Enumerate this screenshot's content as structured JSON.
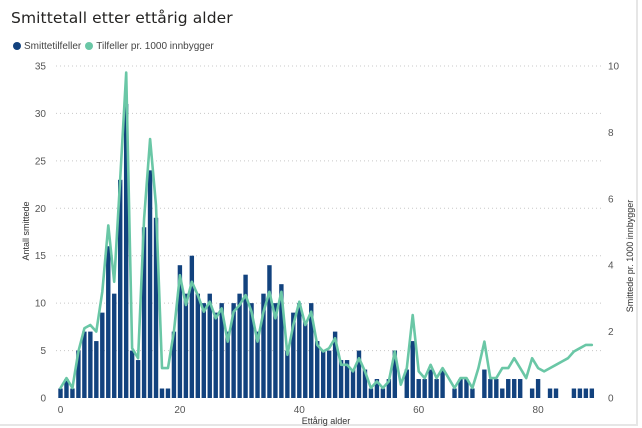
{
  "title": "Smittetall etter ettårig alder",
  "legend": {
    "items": [
      {
        "label": "Smittetilfeller",
        "color": "#12427e"
      },
      {
        "label": "Tilfeller pr. 1000 innbygger",
        "color": "#6ac7a6"
      }
    ]
  },
  "chart_data": {
    "type": "bar",
    "xlabel": "Ettårig alder",
    "ylabel": "Antall smittede",
    "y2label": "Smittede pr. 1000 innbygger",
    "xlim": [
      0,
      89
    ],
    "ylim": [
      0,
      35
    ],
    "y2lim": [
      0,
      10
    ],
    "x_ticks": [
      0,
      20,
      40,
      60,
      80
    ],
    "y_ticks": [
      0,
      5,
      10,
      15,
      20,
      25,
      30,
      35
    ],
    "y2_ticks": [
      0,
      2,
      4,
      6,
      8,
      10
    ],
    "grid": true,
    "legend_position": "top-left",
    "x": [
      0,
      1,
      2,
      3,
      4,
      5,
      6,
      7,
      8,
      9,
      10,
      11,
      12,
      13,
      14,
      15,
      16,
      17,
      18,
      19,
      20,
      21,
      22,
      23,
      24,
      25,
      26,
      27,
      28,
      29,
      30,
      31,
      32,
      33,
      34,
      35,
      36,
      37,
      38,
      39,
      40,
      41,
      42,
      43,
      44,
      45,
      46,
      47,
      48,
      49,
      50,
      51,
      52,
      53,
      54,
      55,
      56,
      57,
      58,
      59,
      60,
      61,
      62,
      63,
      64,
      65,
      66,
      67,
      68,
      69,
      70,
      71,
      72,
      73,
      74,
      75,
      76,
      77,
      78,
      79,
      80,
      81,
      82,
      83,
      84,
      85,
      86,
      87,
      88,
      89
    ],
    "series": [
      {
        "name": "Smittetilfeller",
        "axis": "left",
        "color": "#12427e",
        "values": [
          1,
          2,
          1,
          5,
          7,
          7,
          6,
          9,
          16,
          11,
          23,
          31,
          5,
          4,
          18,
          24,
          19,
          1,
          1,
          7,
          14,
          11,
          15,
          11,
          10,
          11,
          9,
          10,
          7,
          10,
          11,
          13,
          10,
          7,
          11,
          14,
          10,
          12,
          5,
          9,
          10,
          8,
          10,
          6,
          5,
          5,
          7,
          4,
          4,
          3,
          5,
          3,
          1,
          2,
          1,
          2,
          5,
          0,
          3,
          6,
          2,
          2,
          3,
          2,
          3,
          0,
          1,
          2,
          2,
          1,
          0,
          3,
          2,
          2,
          1,
          2,
          2,
          2,
          0,
          1,
          2,
          0,
          1,
          1,
          0,
          0,
          1,
          1,
          1,
          1
        ]
      },
      {
        "name": "Tilfeller pr. 1000 innbygger",
        "axis": "right",
        "color": "#6ac7a6",
        "values": [
          0.3,
          0.6,
          0.3,
          1.4,
          2.1,
          2.2,
          2.0,
          3.2,
          5.2,
          3.5,
          6.6,
          9.8,
          1.5,
          1.2,
          5.4,
          7.8,
          5.8,
          0.9,
          0.9,
          2.0,
          3.7,
          2.8,
          3.5,
          3.1,
          2.6,
          2.9,
          2.4,
          2.7,
          1.7,
          2.6,
          2.8,
          3.1,
          2.6,
          1.7,
          2.6,
          3.2,
          2.4,
          3.2,
          1.3,
          2.2,
          2.9,
          2.2,
          2.6,
          1.6,
          1.4,
          1.5,
          1.8,
          1.0,
          1.0,
          0.8,
          1.2,
          0.8,
          0.3,
          0.5,
          0.3,
          0.5,
          1.4,
          0.4,
          0.9,
          2.5,
          0.8,
          0.6,
          1.0,
          0.6,
          0.9,
          0.6,
          0.3,
          0.6,
          0.6,
          0.3,
          0.9,
          1.7,
          0.6,
          0.6,
          0.9,
          0.9,
          1.2,
          0.9,
          0.6,
          1.2,
          0.9,
          0.8,
          0.9,
          1.0,
          1.1,
          1.2,
          1.4,
          1.5,
          1.6,
          1.6
        ]
      }
    ]
  }
}
